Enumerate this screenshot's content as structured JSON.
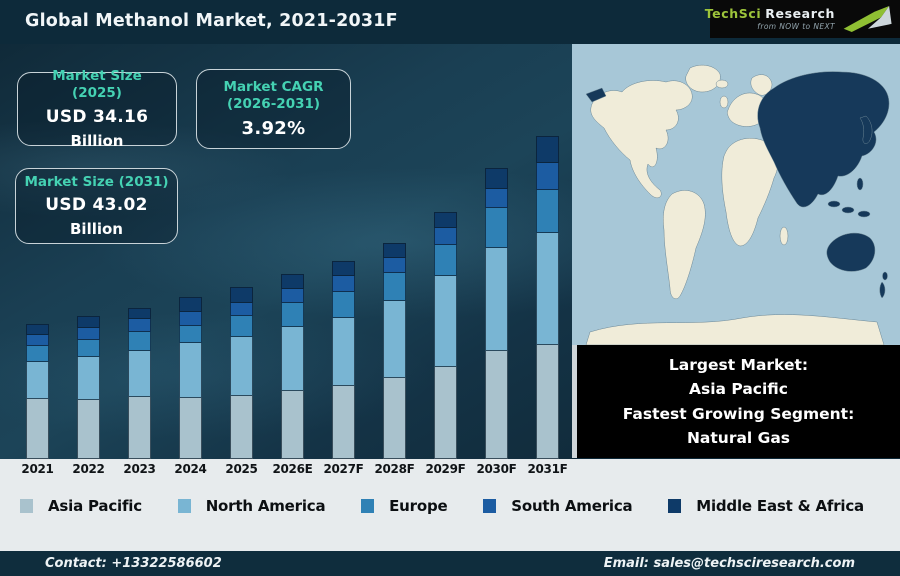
{
  "header": {
    "title": "Global Methanol Market, 2021-2031F",
    "logo": {
      "brand_primary": "TechSci",
      "brand_secondary": "Research",
      "tagline": "from NOW to NEXT"
    }
  },
  "stats": [
    {
      "label": "Market Size (2025)",
      "value": "USD 34.16",
      "unit": "Billion"
    },
    {
      "label": "Market CAGR (2026-2031)",
      "value": "3.92%"
    },
    {
      "label": "Market Size (2031)",
      "value": "USD 43.02",
      "unit": "Billion"
    }
  ],
  "highlight_box": {
    "lines": [
      "Largest Market:",
      "Asia Pacific",
      "Fastest Growing Segment:",
      "Natural Gas"
    ]
  },
  "map": {
    "description": "world-map-with-asia-pacific-highlighted",
    "highlighted_region": "Asia Pacific",
    "colors": {
      "ocean": "#a7c7d7",
      "land": "#f0ecd9",
      "highlight": "#16395a"
    }
  },
  "chart_data": {
    "type": "bar",
    "stacked": true,
    "title": "Global Methanol Market, 2021-2031F",
    "categories": [
      "2021",
      "2022",
      "2023",
      "2024",
      "2025",
      "2026E",
      "2027F",
      "2028F",
      "2029F",
      "2030F",
      "2031F"
    ],
    "series": [
      {
        "name": "Asia Pacific",
        "color": "#a9c2cd",
        "values": [
          60,
          59,
          62,
          61,
          63,
          68,
          73,
          81,
          92,
          108,
          114
        ]
      },
      {
        "name": "North America",
        "color": "#79b5d3",
        "values": [
          37,
          43,
          46,
          55,
          59,
          64,
          68,
          77,
          91,
          103,
          112
        ]
      },
      {
        "name": "Europe",
        "color": "#2f81b5",
        "values": [
          16,
          17,
          19,
          17,
          21,
          24,
          26,
          28,
          31,
          40,
          43
        ]
      },
      {
        "name": "South America",
        "color": "#1c5ca2",
        "values": [
          11,
          12,
          13,
          14,
          13,
          14,
          16,
          15,
          17,
          19,
          27
        ]
      },
      {
        "name": "Middle East & Africa",
        "color": "#0e3a68",
        "values": [
          11,
          12,
          11,
          15,
          16,
          15,
          15,
          15,
          16,
          21,
          27
        ]
      }
    ],
    "value_units": "relative bar height in px (no value axis shown in figure)",
    "annotations": [
      "Market Size (2025): USD 34.16 Billion",
      "Market CAGR (2026-2031): 3.92%",
      "Market Size (2031): USD 43.02 Billion"
    ],
    "xlabel": "",
    "ylabel": "",
    "legend_position": "bottom",
    "grid": false
  },
  "legend": [
    {
      "label": "Asia Pacific",
      "color": "#a9c2cd"
    },
    {
      "label": "North America",
      "color": "#79b5d3"
    },
    {
      "label": "Europe",
      "color": "#2f81b5"
    },
    {
      "label": "South America",
      "color": "#1c5ca2"
    },
    {
      "label": "Middle East & Africa",
      "color": "#0e3a68"
    }
  ],
  "footer": {
    "contact": "Contact: +13322586602",
    "email": "Email: sales@techsciresearch.com"
  },
  "theme": {
    "accent_teal": "#45d2b3",
    "header_bg": "#0d2a3a",
    "footer_bg": "#0f2d3d",
    "bottom_bg": "#e7ebed"
  }
}
